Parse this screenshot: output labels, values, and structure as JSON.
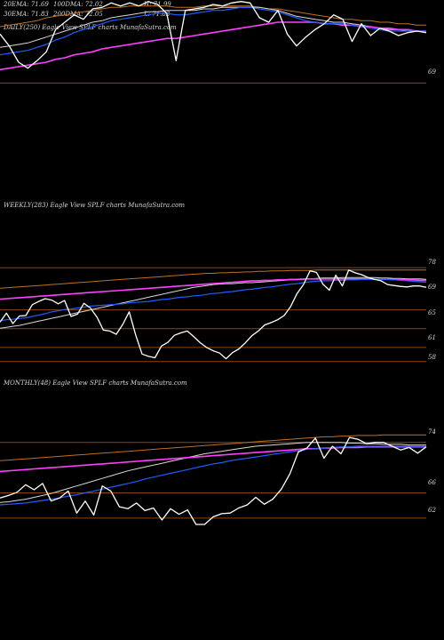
{
  "chart_data": [
    {
      "type": "line",
      "panel": "daily",
      "labels": {
        "ema20": "20EMA: 71.69",
        "ema30": "30EMA: 71.83",
        "dma100": "100DMA: 72.02",
        "dma200": "200DMA: 72.05",
        "h_val": "H: 71.99",
        "l_val": "L: 71.63",
        "header": "DAILY(250) Eagle  View  SPLF charts MunafaSutra.com"
      },
      "yticks": [
        "69"
      ],
      "ylim": [
        68.5,
        74.5
      ],
      "colors": {
        "price": "#ffffff",
        "ema_short": "#1e5eff",
        "ema_long": "#ff40ff",
        "sma": "#d8d8d8",
        "ema_mid": "#c07020",
        "ref": "#8b4513"
      },
      "series": [
        {
          "role": "price",
          "values": [
            72.2,
            71.4,
            70.3,
            69.9,
            70.4,
            71.0,
            72.5,
            73.0,
            73.5,
            73.2,
            73.9,
            74.0,
            74.3,
            74.1,
            74.3,
            74.1,
            74.4,
            74.2,
            73.6,
            70.4,
            73.8,
            73.9,
            74.0,
            74.2,
            74.1,
            74.3,
            74.4,
            74.3,
            73.3,
            73.0,
            73.8,
            72.2,
            71.4,
            72.0,
            72.5,
            72.9,
            73.5,
            73.2,
            71.7,
            72.9,
            72.1,
            72.6,
            72.4,
            72.1,
            72.3,
            72.4,
            72.3
          ]
        },
        {
          "role": "ema_short",
          "values": [
            70.8,
            70.9,
            71.0,
            71.1,
            71.3,
            71.5,
            71.8,
            72.0,
            72.3,
            72.5,
            72.7,
            72.9,
            73.1,
            73.2,
            73.3,
            73.4,
            73.5,
            73.6,
            73.6,
            73.5,
            73.5,
            73.6,
            73.7,
            73.8,
            73.8,
            73.9,
            74.0,
            74.0,
            73.9,
            73.8,
            73.7,
            73.5,
            73.3,
            73.1,
            73.0,
            72.9,
            72.9,
            72.9,
            72.8,
            72.7,
            72.6,
            72.5,
            72.4,
            72.4,
            72.4,
            72.4,
            72.4
          ]
        },
        {
          "role": "ema_long",
          "values": [
            69.8,
            69.9,
            70.0,
            70.1,
            70.2,
            70.3,
            70.5,
            70.6,
            70.8,
            70.9,
            71.0,
            71.2,
            71.3,
            71.4,
            71.5,
            71.6,
            71.7,
            71.8,
            71.9,
            71.9,
            72.0,
            72.1,
            72.2,
            72.3,
            72.4,
            72.5,
            72.6,
            72.7,
            72.8,
            72.9,
            73.0,
            73.0,
            73.0,
            73.0,
            73.0,
            72.9,
            72.9,
            72.8,
            72.8,
            72.7,
            72.7,
            72.6,
            72.6,
            72.5,
            72.5,
            72.4,
            72.4
          ]
        },
        {
          "role": "sma",
          "values": [
            71.3,
            71.4,
            71.5,
            71.6,
            71.8,
            72.0,
            72.2,
            72.4,
            72.6,
            72.8,
            73.0,
            73.1,
            73.3,
            73.4,
            73.5,
            73.6,
            73.7,
            73.7,
            73.8,
            73.8,
            73.8,
            73.8,
            73.9,
            73.9,
            74.0,
            74.0,
            74.0,
            74.0,
            74.0,
            73.9,
            73.8,
            73.6,
            73.4,
            73.3,
            73.2,
            73.1,
            73.0,
            73.0,
            72.9,
            72.8,
            72.7,
            72.6,
            72.5,
            72.5,
            72.4,
            72.4,
            72.4
          ]
        },
        {
          "role": "ema_mid",
          "values": [
            72.7,
            72.8,
            72.9,
            73.0,
            73.1,
            73.3,
            73.4,
            73.5,
            73.6,
            73.7,
            73.8,
            73.9,
            74.0,
            74.0,
            74.1,
            74.1,
            74.1,
            74.1,
            74.1,
            74.0,
            74.0,
            74.0,
            74.1,
            74.1,
            74.1,
            74.1,
            74.1,
            74.1,
            74.0,
            73.9,
            73.9,
            73.8,
            73.7,
            73.6,
            73.5,
            73.4,
            73.3,
            73.2,
            73.2,
            73.1,
            73.1,
            73.0,
            73.0,
            72.9,
            72.9,
            72.8,
            72.8
          ]
        }
      ],
      "hlines": [
        68.9
      ]
    },
    {
      "type": "line",
      "panel": "weekly",
      "labels": {
        "header": "WEEKLY(283) Eagle  View  SPLF charts MunafaSutra.com"
      },
      "yticks": [
        "78",
        "69",
        "65",
        "61",
        "58"
      ],
      "ytick_values": [
        78,
        69,
        65,
        61,
        58
      ],
      "ylim": [
        57,
        82
      ],
      "series": [
        {
          "role": "price",
          "values": [
            66.4,
            68.3,
            66.1,
            67.7,
            67.8,
            70.1,
            70.8,
            71.4,
            71.1,
            70.3,
            71.0,
            67.6,
            68.1,
            70.4,
            69.4,
            67.5,
            64.7,
            64.5,
            63.8,
            65.9,
            68.6,
            63.7,
            59.6,
            59.1,
            58.8,
            61.3,
            62.1,
            63.6,
            64.1,
            64.5,
            63.3,
            62.0,
            61.0,
            60.3,
            59.8,
            58.6,
            59.9,
            60.7,
            62.0,
            63.5,
            64.5,
            65.8,
            66.3,
            66.9,
            67.8,
            69.7,
            72.5,
            74.4,
            77.3,
            77.0,
            74.5,
            73.2,
            76.4,
            74.1,
            77.5,
            76.9,
            76.5,
            75.9,
            75.5,
            75.2,
            74.4,
            74.2,
            74.0,
            73.9,
            74.1,
            74.1,
            73.8
          ]
        },
        {
          "role": "ema_short",
          "values": [
            66.7,
            66.9,
            67.0,
            67.2,
            67.3,
            67.6,
            67.9,
            68.2,
            68.6,
            68.8,
            69.1,
            69.2,
            69.4,
            69.6,
            69.8,
            69.9,
            70.0,
            70.1,
            70.2,
            70.3,
            70.5,
            70.6,
            70.7,
            70.8,
            71.0,
            71.2,
            71.3,
            71.5,
            71.7,
            71.8,
            72.0,
            72.1,
            72.3,
            72.5,
            72.6,
            72.8,
            72.9,
            73.1,
            73.3,
            73.4,
            73.6,
            73.8,
            73.9,
            74.1,
            74.3,
            74.5,
            74.6,
            74.8,
            75.0,
            75.1,
            75.2,
            75.2,
            75.3,
            75.3,
            75.4,
            75.4,
            75.5,
            75.5,
            75.5,
            75.5,
            75.5,
            75.4,
            75.3,
            75.2,
            75.1,
            75.0,
            74.9
          ]
        },
        {
          "role": "ema_long",
          "values": [
            71.3,
            71.4,
            71.5,
            71.6,
            71.7,
            71.8,
            71.9,
            72.0,
            72.1,
            72.2,
            72.3,
            72.4,
            72.5,
            72.6,
            72.7,
            72.8,
            72.9,
            73.0,
            73.1,
            73.2,
            73.3,
            73.4,
            73.5,
            73.6,
            73.7,
            73.8,
            73.9,
            74.0,
            74.1,
            74.2,
            74.3,
            74.4,
            74.5,
            74.6,
            74.7,
            74.8,
            74.9,
            75.0,
            75.1,
            75.2,
            75.2,
            75.3,
            75.3,
            75.4,
            75.4,
            75.5,
            75.5,
            75.6,
            75.6,
            75.6,
            75.6,
            75.6,
            75.6,
            75.6,
            75.6,
            75.6,
            75.6,
            75.6,
            75.5,
            75.5,
            75.5,
            75.5,
            75.4,
            75.4,
            75.4,
            75.3,
            75.3
          ]
        },
        {
          "role": "sma",
          "values": [
            65.1,
            65.3,
            65.5,
            65.7,
            66.0,
            66.3,
            66.6,
            66.9,
            67.2,
            67.5,
            67.8,
            68.1,
            68.4,
            68.7,
            69.0,
            69.3,
            69.6,
            69.9,
            70.2,
            70.5,
            70.8,
            71.1,
            71.4,
            71.7,
            72.0,
            72.3,
            72.6,
            72.9,
            73.2,
            73.5,
            73.8,
            74.0,
            74.2,
            74.4,
            74.5,
            74.6,
            74.6,
            74.7,
            74.8,
            74.8,
            74.9,
            75.0,
            75.1,
            75.2,
            75.3,
            75.4,
            75.4,
            75.5,
            75.6,
            75.7,
            75.8,
            75.8,
            75.8,
            75.9,
            75.9,
            75.9,
            75.9,
            75.9,
            75.9,
            75.8,
            75.8,
            75.7,
            75.7,
            75.6,
            75.6,
            75.6,
            75.5
          ]
        },
        {
          "role": "ema_mid",
          "values": [
            73.6,
            73.7,
            73.8,
            73.9,
            74.0,
            74.1,
            74.2,
            74.3,
            74.4,
            74.5,
            74.6,
            74.7,
            74.8,
            74.9,
            75.0,
            75.1,
            75.2,
            75.3,
            75.4,
            75.5,
            75.6,
            75.7,
            75.8,
            75.9,
            76.0,
            76.1,
            76.2,
            76.3,
            76.4,
            76.5,
            76.6,
            76.7,
            76.8,
            76.8,
            76.9,
            76.9,
            77.0,
            77.0,
            77.1,
            77.1,
            77.2,
            77.2,
            77.3,
            77.3,
            77.3,
            77.4,
            77.4,
            77.4,
            77.4,
            77.5,
            77.5,
            77.5,
            77.5,
            77.5,
            77.5,
            77.5,
            77.5,
            77.5,
            77.5,
            77.5,
            77.5,
            77.5,
            77.5,
            77.5,
            77.5,
            77.5,
            77.5
          ]
        }
      ],
      "hlines": [
        78,
        69,
        65,
        61,
        58
      ]
    },
    {
      "type": "line",
      "panel": "monthly",
      "labels": {
        "header": "MONTHLY(48) Eagle  View  SPLF charts MunafaSutra.com"
      },
      "yticks": [
        "74",
        "66",
        "62"
      ],
      "ytick_values": [
        74,
        66,
        62
      ],
      "ylim": [
        61,
        76.5
      ],
      "series": [
        {
          "role": "price",
          "values": [
            65.2,
            65.6,
            66.1,
            67.3,
            66.5,
            67.5,
            64.7,
            65.2,
            66.3,
            62.8,
            64.7,
            62.5,
            67.1,
            66.3,
            63.8,
            63.5,
            64.4,
            63.2,
            63.6,
            61.7,
            63.5,
            62.6,
            63.3,
            61.0,
            61.0,
            62.2,
            62.7,
            62.8,
            63.6,
            64.1,
            65.3,
            64.2,
            65.0,
            66.6,
            69.0,
            72.5,
            73.1,
            74.7,
            71.5,
            73.4,
            72.2,
            74.8,
            74.5,
            73.8,
            74.0,
            74.0,
            73.4,
            72.8,
            73.2,
            72.3,
            73.3
          ]
        },
        {
          "role": "ema_short",
          "values": [
            64.1,
            64.2,
            64.3,
            64.4,
            64.6,
            64.8,
            65.0,
            65.2,
            65.5,
            65.7,
            66.0,
            66.3,
            66.6,
            66.9,
            67.2,
            67.5,
            67.8,
            68.2,
            68.5,
            68.8,
            69.1,
            69.4,
            69.7,
            70.0,
            70.3,
            70.6,
            70.8,
            71.1,
            71.3,
            71.5,
            71.7,
            71.9,
            72.1,
            72.3,
            72.5,
            72.7,
            72.9,
            73.0,
            73.1,
            73.2,
            73.3,
            73.3,
            73.4,
            73.4,
            73.4,
            73.4,
            73.4,
            73.4,
            73.4,
            73.4,
            73.4
          ]
        },
        {
          "role": "ema_long",
          "values": [
            69.4,
            69.5,
            69.6,
            69.7,
            69.8,
            69.9,
            70.0,
            70.1,
            70.2,
            70.3,
            70.4,
            70.5,
            70.6,
            70.7,
            70.8,
            70.9,
            71.0,
            71.1,
            71.2,
            71.3,
            71.4,
            71.5,
            71.6,
            71.7,
            71.8,
            71.9,
            72.0,
            72.1,
            72.2,
            72.3,
            72.4,
            72.5,
            72.6,
            72.7,
            72.8,
            72.9,
            73.0,
            73.0,
            73.1,
            73.1,
            73.2,
            73.2,
            73.2,
            73.3,
            73.3,
            73.3,
            73.3,
            73.3,
            73.3,
            73.3,
            73.3
          ]
        },
        {
          "role": "sma",
          "values": [
            64.5,
            64.6,
            64.8,
            65.0,
            65.3,
            65.6,
            65.9,
            66.3,
            66.7,
            67.1,
            67.5,
            67.9,
            68.3,
            68.7,
            69.1,
            69.5,
            69.8,
            70.1,
            70.4,
            70.7,
            71.0,
            71.3,
            71.6,
            71.9,
            72.2,
            72.4,
            72.6,
            72.8,
            73.0,
            73.2,
            73.4,
            73.5,
            73.6,
            73.7,
            73.8,
            73.9,
            74.0,
            74.0,
            74.0,
            74.0,
            74.0,
            73.9,
            73.9,
            73.8,
            73.8,
            73.7,
            73.7,
            73.7,
            73.6,
            73.6,
            73.6
          ]
        },
        {
          "role": "ema_mid",
          "values": [
            71.1,
            71.2,
            71.3,
            71.4,
            71.5,
            71.6,
            71.7,
            71.8,
            71.9,
            72.0,
            72.1,
            72.2,
            72.3,
            72.4,
            72.5,
            72.6,
            72.7,
            72.8,
            72.9,
            73.0,
            73.1,
            73.2,
            73.3,
            73.4,
            73.5,
            73.6,
            73.7,
            73.8,
            73.9,
            74.0,
            74.1,
            74.2,
            74.3,
            74.4,
            74.5,
            74.6,
            74.7,
            74.8,
            74.9,
            74.9,
            75.0,
            75.0,
            75.1,
            75.1,
            75.1,
            75.2,
            75.2,
            75.2,
            75.2,
            75.2,
            75.2
          ]
        }
      ],
      "hlines": [
        74,
        66,
        62
      ]
    }
  ]
}
